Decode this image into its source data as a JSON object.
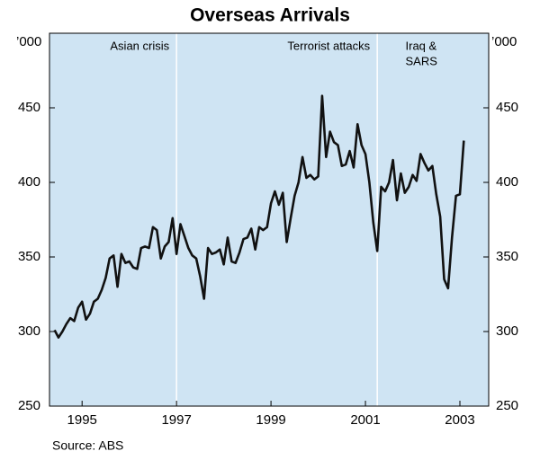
{
  "chart_data": {
    "type": "line",
    "title": "Overseas Arrivals",
    "y_unit": "’000",
    "source": "Source: ABS",
    "annotations": [
      {
        "lines": [
          "Asian crisis"
        ],
        "x": 1997.5
      },
      {
        "lines": [
          "Terrorist attacks"
        ],
        "x": 2001.75
      },
      {
        "lines": [
          "Iraq &",
          "SARS"
        ],
        "x": 2002.5
      }
    ],
    "event_lines": [
      1997.5,
      2001.75
    ],
    "xlim": [
      1994.81,
      2004.11
    ],
    "xticks": [
      {
        "value": 1995.5,
        "label": "1995"
      },
      {
        "value": 1997.5,
        "label": "1997"
      },
      {
        "value": 1999.5,
        "label": "1999"
      },
      {
        "value": 2001.5,
        "label": "2001"
      },
      {
        "value": 2003.5,
        "label": "2003"
      }
    ],
    "ylim": [
      250,
      500
    ],
    "yticks": [
      250,
      300,
      350,
      400,
      450
    ],
    "y2lim": [
      250,
      500
    ],
    "y2ticks": [
      250,
      300,
      350,
      400,
      450
    ],
    "x": [
      1994.917,
      1995.0,
      1995.083,
      1995.167,
      1995.25,
      1995.333,
      1995.417,
      1995.5,
      1995.583,
      1995.667,
      1995.75,
      1995.833,
      1995.917,
      1996.0,
      1996.083,
      1996.167,
      1996.25,
      1996.333,
      1996.417,
      1996.5,
      1996.583,
      1996.667,
      1996.75,
      1996.833,
      1996.917,
      1997.0,
      1997.083,
      1997.167,
      1997.25,
      1997.333,
      1997.417,
      1997.5,
      1997.583,
      1997.667,
      1997.75,
      1997.833,
      1997.917,
      1998.0,
      1998.083,
      1998.167,
      1998.25,
      1998.333,
      1998.417,
      1998.5,
      1998.583,
      1998.667,
      1998.75,
      1998.833,
      1998.917,
      1999.0,
      1999.083,
      1999.167,
      1999.25,
      1999.333,
      1999.417,
      1999.5,
      1999.583,
      1999.667,
      1999.75,
      1999.833,
      1999.917,
      2000.0,
      2000.083,
      2000.167,
      2000.25,
      2000.333,
      2000.417,
      2000.5,
      2000.583,
      2000.667,
      2000.75,
      2000.833,
      2000.917,
      2001.0,
      2001.083,
      2001.167,
      2001.25,
      2001.333,
      2001.417,
      2001.5,
      2001.583,
      2001.667,
      2001.75,
      2001.833,
      2001.917,
      2002.0,
      2002.083,
      2002.167,
      2002.25,
      2002.333,
      2002.417,
      2002.5,
      2002.583,
      2002.667,
      2002.75,
      2002.833,
      2002.917,
      2003.0,
      2003.083,
      2003.167,
      2003.25,
      2003.333,
      2003.417,
      2003.5,
      2003.583
    ],
    "series": [
      {
        "name": "Overseas arrivals",
        "color": "#111111",
        "values": [
          301,
          296,
          300,
          305,
          309,
          307,
          316,
          320,
          308,
          312,
          320,
          322,
          328,
          336,
          349,
          351,
          330,
          352,
          346,
          347,
          343,
          342,
          356,
          357,
          356,
          370,
          368,
          349,
          357,
          360,
          376,
          352,
          372,
          364,
          356,
          351,
          349,
          337,
          322,
          356,
          352,
          353,
          355,
          345,
          363,
          347,
          346,
          353,
          362,
          363,
          369,
          355,
          370,
          368,
          370,
          386,
          394,
          385,
          393,
          360,
          376,
          391,
          400,
          417,
          403,
          405,
          402,
          404,
          458,
          417,
          434,
          427,
          425,
          411,
          412,
          421,
          410,
          439,
          425,
          419,
          400,
          373,
          354,
          397,
          394,
          400,
          415,
          388,
          406,
          393,
          397,
          405,
          401,
          419,
          413,
          408,
          411,
          392,
          377,
          335,
          329,
          363,
          391,
          392,
          428
        ]
      }
    ]
  }
}
